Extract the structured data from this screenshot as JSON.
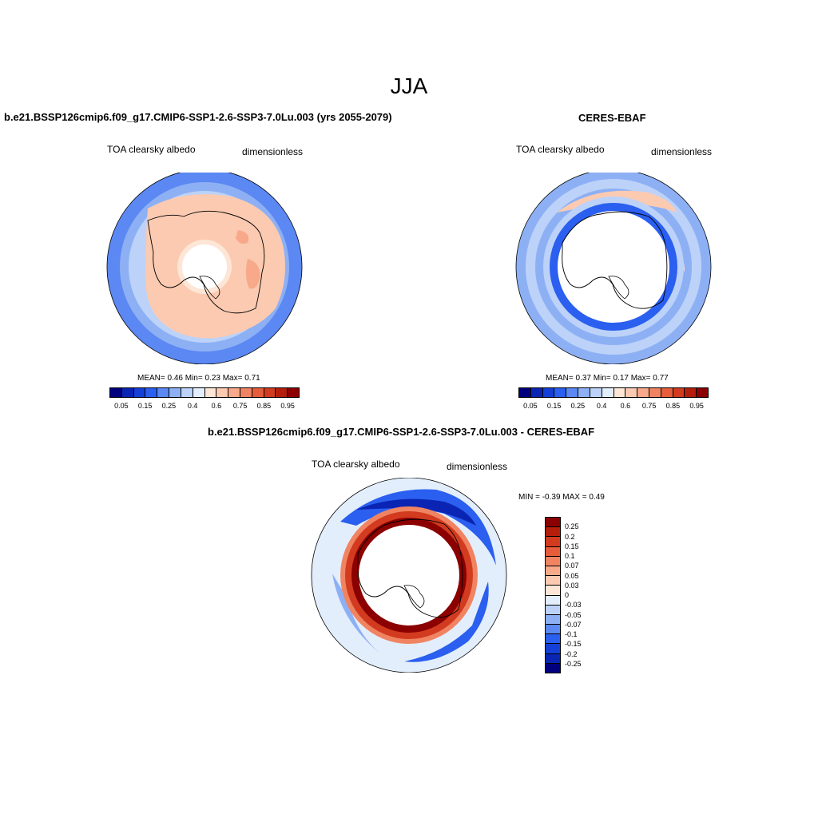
{
  "figure": {
    "title": "JJA"
  },
  "panels": [
    {
      "id": "model",
      "title": "b.e21.BSSP126cmip6.f09_g17.CMIP6-SSP1-2.6-SSP3-7.0Lu.003 (yrs 2055-2079)",
      "variable": "TOA clearsky albedo",
      "units": "dimensionless",
      "stats": "MEAN=   0.46  Min=   0.23  Max=   0.71"
    },
    {
      "id": "obs",
      "title": "CERES-EBAF",
      "variable": "TOA clearsky albedo",
      "units": "dimensionless",
      "stats": "MEAN=   0.37  Min=   0.17  Max=   0.77"
    },
    {
      "id": "diff",
      "title": "b.e21.BSSP126cmip6.f09_g17.CMIP6-SSP1-2.6-SSP3-7.0Lu.003 - CERES-EBAF",
      "variable": "TOA clearsky albedo",
      "units": "dimensionless",
      "stats": "MIN =  -0.39 MAX =   0.49"
    }
  ],
  "colorbar_abs": {
    "colors": [
      "#00007f",
      "#0a25b3",
      "#1440d8",
      "#2a5fef",
      "#5b88f2",
      "#8db0f5",
      "#bcd2f8",
      "#e3eefc",
      "#fde6d6",
      "#fbcab1",
      "#f7a98a",
      "#f08462",
      "#e55d3a",
      "#d23b1f",
      "#b51e0c",
      "#8b0000"
    ],
    "ticks": [
      "0.05",
      "0.15",
      "0.25",
      "0.4",
      "0.6",
      "0.75",
      "0.85",
      "0.95"
    ]
  },
  "colorbar_diff": {
    "colors": [
      "#8b0000",
      "#b51e0c",
      "#d23b1f",
      "#e55d3a",
      "#f08462",
      "#f7a98a",
      "#fbcab1",
      "#fde6d6",
      "#e3eefc",
      "#bcd2f8",
      "#8db0f5",
      "#5b88f2",
      "#2a5fef",
      "#1440d8",
      "#0a25b3",
      "#00007f"
    ],
    "ticks": [
      "0.25",
      "0.2",
      "0.15",
      "0.1",
      "0.07",
      "0.05",
      "0.03",
      "0",
      "-0.03",
      "-0.05",
      "-0.07",
      "-0.1",
      "-0.15",
      "-0.2",
      "-0.25"
    ]
  }
}
